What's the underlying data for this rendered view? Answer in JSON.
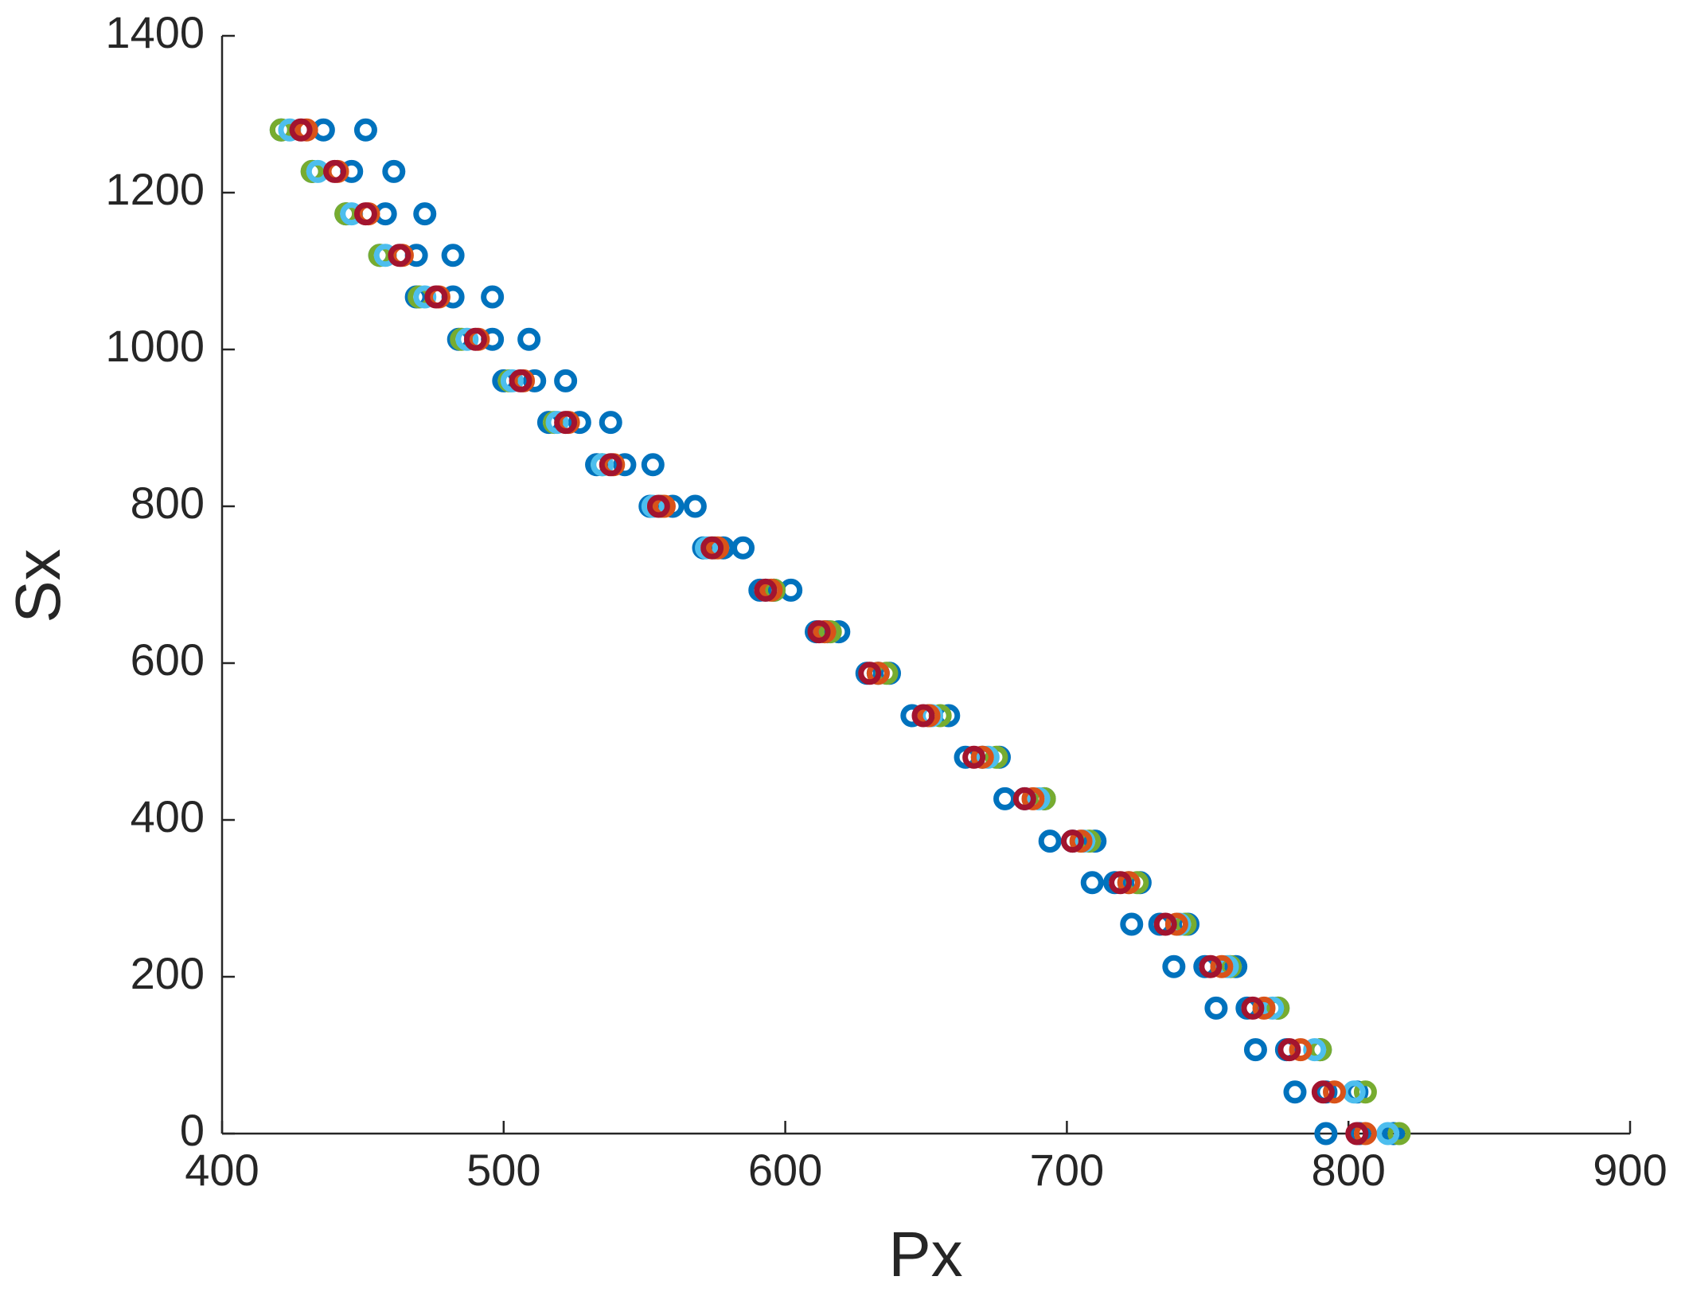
{
  "chart_data": {
    "type": "scatter",
    "x_label": "Px",
    "y_label": "Sx",
    "xlim": [
      400,
      900
    ],
    "ylim": [
      0,
      1400
    ],
    "xticks": [
      400,
      500,
      600,
      700,
      800,
      900
    ],
    "yticks": [
      0,
      200,
      400,
      600,
      800,
      1000,
      1200,
      1400
    ],
    "marker": "circle",
    "series": [
      {
        "color": "#0072BD",
        "x": [
          421,
          436,
          451,
          432,
          446,
          461,
          444,
          458,
          472,
          456,
          469,
          482,
          469,
          482,
          496,
          484,
          496,
          509,
          500,
          511,
          522,
          516,
          527,
          538,
          533,
          543,
          553,
          552,
          560,
          568,
          571,
          578,
          585,
          591,
          596,
          602,
          611,
          615,
          619,
          629,
          633,
          637,
          645,
          651,
          658,
          664,
          670,
          676,
          678,
          685,
          692,
          694,
          702,
          710,
          709,
          717,
          726,
          723,
          733,
          743,
          738,
          749,
          760,
          753,
          764,
          775,
          767,
          778,
          790,
          781,
          792,
          803,
          792,
          804,
          816
        ],
        "y": [
          1280,
          1280,
          1280,
          1227,
          1227,
          1227,
          1173,
          1173,
          1173,
          1120,
          1120,
          1120,
          1067,
          1067,
          1067,
          1013,
          1013,
          1013,
          960,
          960,
          960,
          907,
          907,
          907,
          853,
          853,
          853,
          800,
          800,
          800,
          747,
          747,
          747,
          693,
          693,
          693,
          640,
          640,
          640,
          587,
          587,
          587,
          533,
          533,
          533,
          480,
          480,
          480,
          427,
          427,
          427,
          373,
          373,
          373,
          320,
          320,
          320,
          267,
          267,
          267,
          213,
          213,
          213,
          160,
          160,
          160,
          107,
          107,
          107,
          53,
          53,
          53,
          0,
          0,
          0
        ]
      },
      {
        "color": "#77AC30",
        "x": [
          421,
          432,
          444,
          456,
          470,
          485,
          502,
          518,
          535,
          556,
          575,
          596,
          616,
          636,
          655,
          675,
          692,
          708,
          725,
          742,
          758,
          775,
          790,
          806,
          818
        ],
        "y": [
          1280,
          1227,
          1173,
          1120,
          1067,
          1013,
          960,
          907,
          853,
          800,
          747,
          693,
          640,
          587,
          533,
          480,
          427,
          373,
          320,
          267,
          213,
          160,
          107,
          53,
          0
        ]
      },
      {
        "color": "#4DBEEE",
        "x": [
          424,
          434,
          446,
          458,
          472,
          487,
          503,
          519,
          535,
          553,
          572,
          593,
          614,
          633,
          652,
          672,
          690,
          706,
          722,
          740,
          757,
          773,
          788,
          802,
          814
        ],
        "y": [
          1280,
          1227,
          1173,
          1120,
          1067,
          1013,
          960,
          907,
          853,
          800,
          747,
          693,
          640,
          587,
          533,
          480,
          427,
          373,
          320,
          267,
          213,
          160,
          107,
          53,
          0
        ]
      },
      {
        "color": "#D95319",
        "x": [
          430,
          441,
          452,
          464,
          477,
          491,
          507,
          523,
          539,
          557,
          576,
          595,
          614,
          633,
          651,
          670,
          688,
          705,
          722,
          739,
          755,
          770,
          783,
          795,
          806
        ],
        "y": [
          1280,
          1227,
          1173,
          1120,
          1067,
          1013,
          960,
          907,
          853,
          800,
          747,
          693,
          640,
          587,
          533,
          480,
          427,
          373,
          320,
          267,
          213,
          160,
          107,
          53,
          0
        ]
      },
      {
        "color": "#A2142F",
        "x": [
          428,
          440,
          451,
          463,
          476,
          490,
          506,
          522,
          538,
          555,
          574,
          593,
          612,
          630,
          649,
          667,
          685,
          702,
          719,
          735,
          751,
          766,
          779,
          791,
          803
        ],
        "y": [
          1280,
          1227,
          1173,
          1120,
          1067,
          1013,
          960,
          907,
          853,
          800,
          747,
          693,
          640,
          587,
          533,
          480,
          427,
          373,
          320,
          267,
          213,
          160,
          107,
          53,
          0
        ]
      }
    ]
  }
}
